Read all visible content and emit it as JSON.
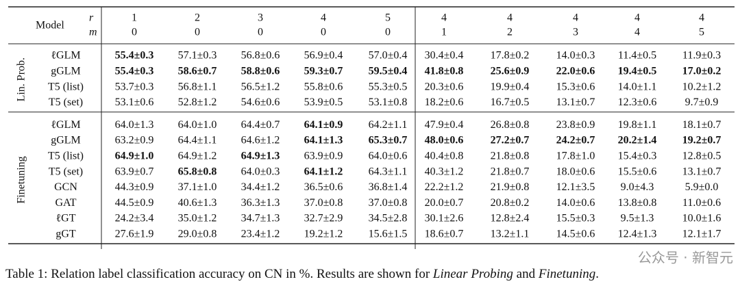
{
  "header": {
    "model": "Model",
    "r_label": "r",
    "m_label": "m",
    "r": [
      "1",
      "2",
      "3",
      "4",
      "5",
      "4",
      "4",
      "4",
      "4",
      "4"
    ],
    "m": [
      "0",
      "0",
      "0",
      "0",
      "0",
      "1",
      "2",
      "3",
      "4",
      "5"
    ]
  },
  "groups": [
    {
      "label": "Lin. Prob.",
      "rows": [
        {
          "model": "ℓGLM",
          "cells": [
            "55.4±0.3",
            "57.1±0.3",
            "56.8±0.6",
            "56.9±0.4",
            "57.0±0.4",
            "30.4±0.4",
            "17.8±0.2",
            "14.0±0.3",
            "11.4±0.5",
            "11.9±0.3"
          ],
          "bold": [
            0
          ]
        },
        {
          "model": "gGLM",
          "cells": [
            "55.4±0.3",
            "58.6±0.7",
            "58.8±0.6",
            "59.3±0.7",
            "59.5±0.4",
            "41.8±0.8",
            "25.6±0.9",
            "22.0±0.6",
            "19.4±0.5",
            "17.0±0.2"
          ],
          "bold": [
            0,
            1,
            2,
            3,
            4,
            5,
            6,
            7,
            8,
            9
          ]
        },
        {
          "model": "T5 (list)",
          "cells": [
            "53.7±0.3",
            "56.8±1.1",
            "56.5±1.2",
            "55.8±0.6",
            "55.3±0.5",
            "20.3±0.6",
            "19.9±0.4",
            "15.3±0.6",
            "14.0±1.1",
            "10.2±1.2"
          ]
        },
        {
          "model": "T5 (set)",
          "cells": [
            "53.1±0.6",
            "52.8±1.2",
            "54.6±0.6",
            "53.9±0.5",
            "53.1±0.8",
            "18.2±0.6",
            "16.7±0.5",
            "13.1±0.7",
            "12.3±0.6",
            "9.7±0.9"
          ]
        }
      ]
    },
    {
      "label": "Finetuning",
      "rows": [
        {
          "model": "ℓGLM",
          "cells": [
            "64.0±1.3",
            "64.0±1.0",
            "64.4±0.7",
            "64.1±0.9",
            "64.2±1.1",
            "47.9±0.4",
            "26.8±0.8",
            "23.8±0.9",
            "19.8±1.1",
            "18.1±0.7"
          ],
          "bold": [
            3
          ]
        },
        {
          "model": "gGLM",
          "cells": [
            "63.2±0.9",
            "64.4±1.1",
            "64.6±1.2",
            "64.1±1.3",
            "65.3±0.7",
            "48.0±0.6",
            "27.2±0.7",
            "24.2±0.7",
            "20.2±1.4",
            "19.2±0.7"
          ],
          "bold": [
            3,
            4,
            5,
            6,
            7,
            8,
            9
          ]
        },
        {
          "model": "T5 (list)",
          "cells": [
            "64.9±1.0",
            "64.9±1.2",
            "64.9±1.3",
            "63.9±0.9",
            "64.0±0.6",
            "40.4±0.8",
            "21.8±0.8",
            "17.8±1.0",
            "15.4±0.3",
            "12.8±0.5"
          ],
          "bold": [
            0,
            2
          ]
        },
        {
          "model": "T5 (set)",
          "cells": [
            "63.9±0.7",
            "65.8±0.8",
            "64.0±0.3",
            "64.1±1.2",
            "64.3±1.1",
            "40.3±1.2",
            "21.8±0.7",
            "18.0±0.6",
            "15.5±0.6",
            "13.1±0.7"
          ],
          "bold": [
            1,
            3
          ]
        },
        {
          "model": "GCN",
          "cells": [
            "44.3±0.9",
            "37.1±1.0",
            "34.4±1.2",
            "36.5±0.6",
            "36.8±1.4",
            "22.2±1.2",
            "21.9±0.8",
            "12.1±3.5",
            "9.0±4.3",
            "5.9±0.0"
          ]
        },
        {
          "model": "GAT",
          "cells": [
            "44.5±0.9",
            "40.6±1.3",
            "36.3±1.3",
            "37.0±0.8",
            "37.0±0.8",
            "20.0±0.7",
            "20.8±0.2",
            "14.0±0.6",
            "13.8±0.8",
            "11.0±0.6"
          ]
        },
        {
          "model": "ℓGT",
          "cells": [
            "24.2±3.4",
            "35.0±1.2",
            "34.7±1.3",
            "32.7±2.9",
            "34.5±2.8",
            "30.1±2.6",
            "12.8±2.4",
            "15.5±0.3",
            "9.5±1.3",
            "10.0±1.6"
          ]
        },
        {
          "model": "gGT",
          "cells": [
            "27.6±1.9",
            "29.0±0.8",
            "23.4±1.2",
            "19.2±1.2",
            "15.6±1.5",
            "18.6±0.7",
            "13.2±1.1",
            "14.5±0.6",
            "12.4±1.3",
            "12.1±1.7"
          ]
        }
      ]
    }
  ],
  "caption": {
    "lead": "Table 1: Relation label classification accuracy on CN in %. Results are shown for ",
    "em1": "Linear Probing",
    "mid": " and ",
    "em2": "Finetuning",
    "end": "."
  },
  "watermark": "公众号 · 新智元"
}
